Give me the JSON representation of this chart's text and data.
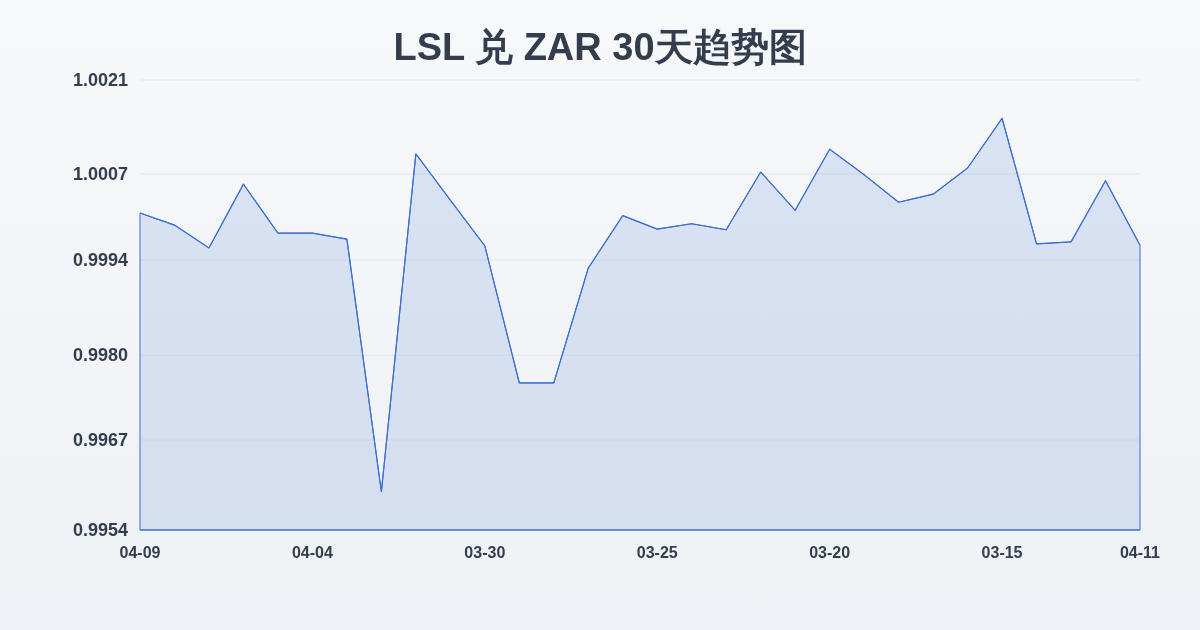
{
  "chart_data": {
    "type": "area",
    "title": "LSL 兑 ZAR 30天趋势图",
    "categories": [
      "04-09",
      null,
      null,
      null,
      null,
      "04-04",
      null,
      null,
      null,
      null,
      "03-30",
      null,
      null,
      null,
      null,
      "03-25",
      null,
      null,
      null,
      null,
      "03-20",
      null,
      null,
      null,
      null,
      "03-15",
      null,
      null,
      null,
      "04-11"
    ],
    "series": [
      {
        "color": "#3a6fd0",
        "values": [
          1.00012,
          0.99994,
          0.9996,
          1.00055,
          0.99982,
          0.99982,
          0.99973,
          0.99597,
          1.001,
          1.00031,
          0.99963,
          0.99759,
          0.99759,
          0.9993,
          1.00008,
          0.99988,
          0.99996,
          0.99987,
          1.00073,
          1.00016,
          1.00107,
          1.00069,
          1.00028,
          1.0004,
          1.00079,
          1.00153,
          0.99966,
          0.99969,
          1.0006,
          0.99964
        ]
      }
    ],
    "ylim": [
      0.9954,
      1.0021
    ],
    "yticks": [
      {
        "value": 0.9954,
        "label": "0.9954"
      },
      {
        "value": 0.99674,
        "label": "0.9967"
      },
      {
        "value": 0.998,
        "label": "0.9980"
      },
      {
        "value": 0.99942,
        "label": "0.9994"
      },
      {
        "value": 1.0007,
        "label": "1.0007"
      },
      {
        "value": 1.0021,
        "label": "1.0021"
      }
    ],
    "grid": "y"
  }
}
